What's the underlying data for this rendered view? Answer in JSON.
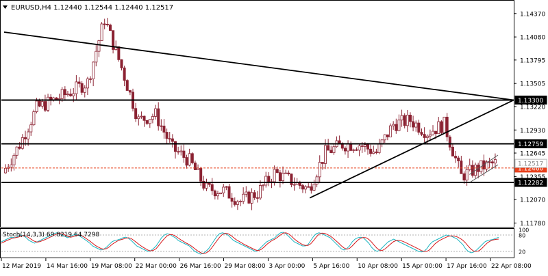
{
  "header": {
    "symbol_line": "EURUSD,H4  1.12440 1.12544 1.12440 1.12517"
  },
  "stoch_label": "Stoch(14,3,3) 69.8219 64.7298",
  "colors": {
    "candle": "#8b2232",
    "trendline": "#000000",
    "bid_line": "#e8401c",
    "stoch_main": "#1fb6c2",
    "stoch_signal": "#d7191c"
  },
  "chart_data": [
    {
      "type": "candlestick",
      "title": "EURUSD,H4",
      "ohlc_last": {
        "open": 1.1244,
        "high": 1.12544,
        "low": 1.1244,
        "close": 1.12517
      },
      "ylim": [
        1.1175,
        1.1452
      ],
      "y_ticks": [
        "1.14370",
        "1.14080",
        "1.13795",
        "1.13505",
        "1.13220",
        "1.12930",
        "1.12645",
        "1.12355",
        "1.12070",
        "1.11780"
      ],
      "x_tick_labels": [
        "12 Mar 2019",
        "14 Mar 16:00",
        "19 Mar 08:00",
        "22 Mar 00:00",
        "26 Mar 16:00",
        "29 Mar 08:00",
        "3 Apr 00:00",
        "5 Apr 16:00",
        "10 Apr 08:00",
        "15 Apr 00:00",
        "17 Apr 16:00",
        "22 Apr 08:00"
      ],
      "price_levels": [
        {
          "label": "1.13300",
          "value": 1.133,
          "kind": "horizontal-line"
        },
        {
          "label": "1.12759",
          "value": 1.12759,
          "kind": "horizontal-line"
        },
        {
          "label": "1.12282",
          "value": 1.12282,
          "kind": "horizontal-line"
        },
        {
          "label": "1.12460",
          "value": 1.1246,
          "kind": "bid-line"
        },
        {
          "label": "1.12517",
          "value": 1.12517,
          "kind": "last-close"
        }
      ],
      "series": [
        {
          "name": "EURUSD",
          "close_path": [
            {
              "x": "12 Mar 2019",
              "y": 1.124
            },
            {
              "x": "13 Mar 2019",
              "y": 1.1275
            },
            {
              "x": "14 Mar 2019",
              "y": 1.132
            },
            {
              "x": "15 Mar 2019",
              "y": 1.133
            },
            {
              "x": "18 Mar 2019",
              "y": 1.134
            },
            {
              "x": "19 Mar 2019",
              "y": 1.1352
            },
            {
              "x": "20 Mar 2019",
              "y": 1.143
            },
            {
              "x": "21 Mar 2019",
              "y": 1.137
            },
            {
              "x": "22 Mar 2019",
              "y": 1.1305
            },
            {
              "x": "25 Mar 2019",
              "y": 1.1312
            },
            {
              "x": "26 Mar 2019",
              "y": 1.127
            },
            {
              "x": "27 Mar 2019",
              "y": 1.1255
            },
            {
              "x": "28 Mar 2019",
              "y": 1.122
            },
            {
              "x": "29 Mar 2019",
              "y": 1.1218
            },
            {
              "x": "1 Apr 2019",
              "y": 1.1205
            },
            {
              "x": "2 Apr 2019",
              "y": 1.1215
            },
            {
              "x": "3 Apr 2019",
              "y": 1.124
            },
            {
              "x": "4 Apr 2019",
              "y": 1.123
            },
            {
              "x": "5 Apr 2019",
              "y": 1.122
            },
            {
              "x": "8 Apr 2019",
              "y": 1.1265
            },
            {
              "x": "9 Apr 2019",
              "y": 1.1275
            },
            {
              "x": "10 Apr 2019",
              "y": 1.1275
            },
            {
              "x": "11 Apr 2019",
              "y": 1.1265
            },
            {
              "x": "12 Apr 2019",
              "y": 1.13
            },
            {
              "x": "15 Apr 2019",
              "y": 1.1305
            },
            {
              "x": "16 Apr 2019",
              "y": 1.129
            },
            {
              "x": "17 Apr 2019",
              "y": 1.13
            },
            {
              "x": "18 Apr 2019",
              "y": 1.1236
            },
            {
              "x": "19 Apr 2019",
              "y": 1.1246
            },
            {
              "x": "22 Apr 2019",
              "y": 1.1252
            }
          ]
        }
      ],
      "trendlines": [
        {
          "from": {
            "x": "12 Mar 2019",
            "y": 1.1414
          },
          "to": {
            "x": "22 Apr 2019",
            "y": 1.133
          }
        },
        {
          "from": {
            "x": "5 Apr 2019",
            "y": 1.1209
          },
          "to": {
            "x": "22 Apr 2019",
            "y": 1.133
          }
        }
      ],
      "channel": {
        "upper": {
          "from": {
            "x": "18 Apr 2019",
            "y": 1.1238
          },
          "to": {
            "x": "22 Apr 2019",
            "y": 1.1262
          }
        },
        "lower": {
          "from": {
            "x": "18 Apr 2019",
            "y": 1.1228
          },
          "to": {
            "x": "22 Apr 2019",
            "y": 1.125
          }
        }
      },
      "grid": false
    },
    {
      "type": "line",
      "title": "Stoch(14,3,3)",
      "ylim": [
        0,
        100
      ],
      "y_ticks": [
        "100",
        "80",
        "20"
      ],
      "series": [
        {
          "name": "%K",
          "last": 69.8219,
          "values": [
            55,
            60,
            65,
            70,
            72,
            70,
            75,
            80,
            78,
            70,
            60,
            55,
            50,
            55,
            60,
            65,
            70,
            75,
            80,
            85,
            88,
            85,
            80,
            75,
            70,
            75,
            80,
            82,
            78,
            72,
            65,
            58,
            50,
            40,
            35,
            30,
            25,
            28,
            35,
            45,
            55,
            60,
            62,
            65,
            70,
            72,
            68,
            60,
            50,
            40,
            35,
            30,
            25,
            20,
            22,
            30,
            40,
            55,
            70,
            80,
            85,
            82,
            75,
            70,
            60,
            55,
            50,
            45,
            40,
            30,
            20,
            15,
            10,
            12,
            20,
            30,
            45,
            60,
            75,
            85,
            88,
            85,
            80,
            70,
            60,
            55,
            50,
            45,
            40,
            35,
            30,
            25,
            20,
            25,
            35,
            45,
            55,
            60,
            65,
            70,
            80,
            88,
            90,
            85,
            75,
            65,
            55,
            50,
            45,
            40,
            40,
            45,
            60,
            75,
            85,
            88,
            85,
            80,
            75,
            70,
            60,
            50,
            40,
            30,
            25,
            30,
            40,
            55,
            65,
            70,
            72,
            70,
            60,
            50,
            35,
            25,
            20,
            25,
            35,
            45,
            55,
            60,
            65,
            60,
            55,
            50,
            45,
            40,
            35,
            30,
            25,
            20,
            18,
            20,
            30,
            45,
            55,
            60,
            65,
            70,
            75,
            80,
            78,
            75,
            70,
            65,
            55,
            45,
            30,
            20,
            15,
            18,
            25,
            35,
            45,
            55,
            60,
            62,
            64,
            68,
            72
          ]
        },
        {
          "name": "%D",
          "last": 64.7298,
          "values": [
            50,
            55,
            60,
            64,
            68,
            70,
            72,
            75,
            78,
            76,
            70,
            63,
            57,
            54,
            56,
            60,
            64,
            69,
            74,
            79,
            84,
            86,
            84,
            80,
            75,
            72,
            74,
            78,
            80,
            78,
            72,
            65,
            58,
            50,
            42,
            36,
            31,
            28,
            30,
            36,
            45,
            52,
            58,
            62,
            65,
            68,
            70,
            67,
            60,
            52,
            44,
            37,
            31,
            25,
            22,
            24,
            30,
            42,
            55,
            67,
            77,
            82,
            81,
            76,
            69,
            62,
            56,
            50,
            45,
            38,
            30,
            22,
            16,
            12,
            14,
            20,
            31,
            45,
            59,
            72,
            82,
            86,
            85,
            79,
            71,
            63,
            57,
            51,
            45,
            40,
            35,
            30,
            25,
            23,
            27,
            35,
            45,
            53,
            60,
            65,
            72,
            80,
            87,
            88,
            84,
            76,
            66,
            58,
            51,
            45,
            42,
            42,
            48,
            60,
            73,
            83,
            87,
            86,
            82,
            76,
            69,
            60,
            51,
            41,
            33,
            28,
            31,
            40,
            51,
            61,
            68,
            71,
            70,
            64,
            54,
            42,
            31,
            24,
            24,
            30,
            39,
            48,
            56,
            60,
            61,
            58,
            54,
            49,
            44,
            39,
            34,
            29,
            23,
            20,
            20,
            26,
            37,
            48,
            56,
            62,
            67,
            72,
            76,
            77,
            76,
            73,
            68,
            61,
            51,
            39,
            28,
            21,
            20,
            23,
            32,
            42,
            52,
            58,
            62,
            64,
            65
          ]
        }
      ],
      "levels": [
        80,
        20
      ]
    }
  ]
}
